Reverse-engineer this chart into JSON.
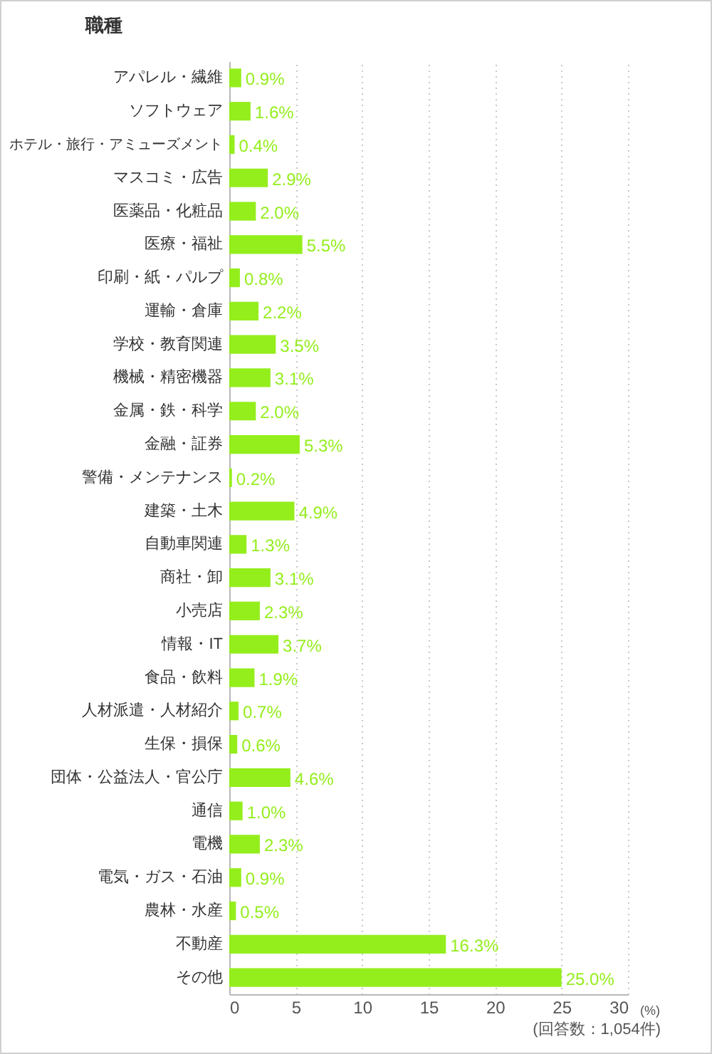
{
  "chart_data": {
    "type": "bar",
    "orientation": "horizontal",
    "title": "職種",
    "xlabel": "(%)",
    "annotations": [
      "(回答数：1,054件)"
    ],
    "categories": [
      "アパレル・繊維",
      "ソフトウェア",
      "ホテル・旅行・アミューズメント",
      "マスコミ・広告",
      "医薬品・化粧品",
      "医療・福祉",
      "印刷・紙・パルプ",
      "運輸・倉庫",
      "学校・教育関連",
      "機械・精密機器",
      "金属・鉄・科学",
      "金融・証券",
      "警備・メンテナンス",
      "建築・土木",
      "自動車関連",
      "商社・卸",
      "小売店",
      "情報・IT",
      "食品・飲料",
      "人材派遣・人材紹介",
      "生保・損保",
      "団体・公益法人・官公庁",
      "通信",
      "電機",
      "電気・ガス・石油",
      "農林・水産",
      "不動産",
      "その他"
    ],
    "values": [
      0.9,
      1.6,
      0.4,
      2.9,
      2.0,
      5.5,
      0.8,
      2.2,
      3.5,
      3.1,
      2.0,
      5.3,
      0.2,
      4.9,
      1.3,
      3.1,
      2.3,
      3.7,
      1.9,
      0.7,
      0.6,
      4.6,
      1.0,
      2.3,
      0.9,
      0.5,
      16.3,
      25.0
    ],
    "value_labels": [
      "0.9%",
      "1.6%",
      "0.4%",
      "2.9%",
      "2.0%",
      "5.5%",
      "0.8%",
      "2.2%",
      "3.5%",
      "3.1%",
      "2.0%",
      "5.3%",
      "0.2%",
      "4.9%",
      "1.3%",
      "3.1%",
      "2.3%",
      "3.7%",
      "1.9%",
      "0.7%",
      "0.6%",
      "4.6%",
      "1.0%",
      "2.3%",
      "0.9%",
      "0.5%",
      "16.3%",
      "25.0%"
    ],
    "color": "#94ee1c",
    "xlim": [
      0,
      30
    ],
    "xticks": [
      0,
      5,
      10,
      15,
      20,
      25,
      30
    ],
    "grid": "x"
  }
}
